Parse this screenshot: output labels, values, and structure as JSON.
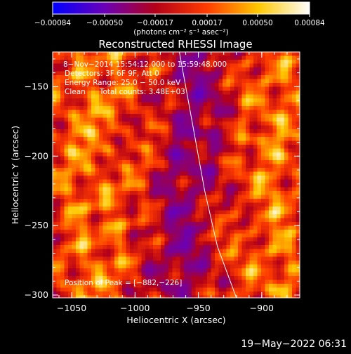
{
  "chart_data": {
    "type": "heatmap",
    "title": "Reconstructed RHESSI Image",
    "xlabel": "Heliocentric X (arcsec)",
    "ylabel": "Heliocentric Y (arcsec)",
    "xlim": [
      -1065,
      -870
    ],
    "ylim": [
      -302,
      -125
    ],
    "x_ticks": [
      -1050,
      -1000,
      -950,
      -900
    ],
    "x_tick_labels": [
      "−1050",
      "−1000",
      "−950",
      "−900"
    ],
    "y_ticks": [
      -300,
      -250,
      -200,
      -150
    ],
    "y_tick_labels": [
      "−300",
      "−250",
      "−200",
      "−150"
    ],
    "colorbar": {
      "range": [
        -0.00084,
        0.00084
      ],
      "ticks": [
        -0.00084,
        -0.0005,
        -0.00017,
        0.00017,
        0.0005,
        0.00084
      ],
      "tick_labels": [
        "−0.00084",
        "−0.00050",
        "−0.00017",
        "0.00017",
        "0.00050",
        "0.00084"
      ],
      "units": "(photons cm⁻² s⁻¹ asec⁻²)",
      "colors": [
        "#0000ff",
        "#6a00b8",
        "#b40018",
        "#ff3c00",
        "#ffc800",
        "#ffffff"
      ]
    },
    "annotations": [
      "8−Nov−2014 15:54:12.000 to 15:59:48.000",
      "Detectors: 3F 6F 9F, Att 0",
      "Energy Range: 25.0 − 50.0 keV",
      "Clean      Total counts: 3.48E+03"
    ],
    "peak_label": "Position of Peak = [−882,−226]",
    "peak": [
      -882,
      -226
    ],
    "limb_curve": [
      [
        -965,
        -125
      ],
      [
        -955,
        -175
      ],
      [
        -945,
        -225
      ],
      [
        -935,
        -265
      ],
      [
        -920,
        -302
      ]
    ]
  },
  "footer_timestamp": "19−May−2022 06:31"
}
